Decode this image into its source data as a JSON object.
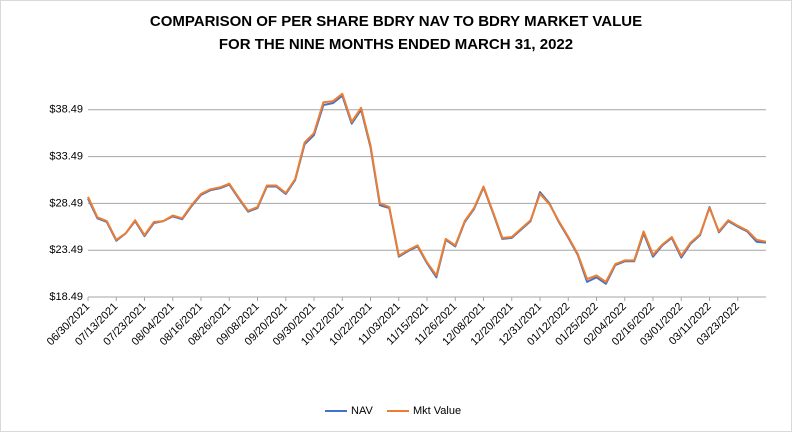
{
  "chart_data": {
    "type": "line",
    "title": [
      "COMPARISON OF PER SHARE BDRY NAV TO BDRY MARKET VALUE",
      "FOR THE NINE MONTHS ENDED MARCH 31, 2022"
    ],
    "categories": [
      "06/30/2021",
      null,
      null,
      "07/13/2021",
      null,
      null,
      "07/23/2021",
      null,
      null,
      "08/04/2021",
      null,
      null,
      "08/16/2021",
      null,
      null,
      "08/26/2021",
      null,
      null,
      "09/08/2021",
      null,
      null,
      "09/20/2021",
      null,
      null,
      "09/30/2021",
      null,
      null,
      "10/12/2021",
      null,
      null,
      "10/22/2021",
      null,
      null,
      "11/03/2021",
      null,
      null,
      "11/15/2021",
      null,
      null,
      "11/26/2021",
      null,
      null,
      "12/08/2021",
      null,
      null,
      "12/20/2021",
      null,
      null,
      "12/31/2021",
      null,
      null,
      "01/12/2022",
      null,
      null,
      "01/25/2022",
      null,
      null,
      "02/04/2022",
      null,
      null,
      "02/16/2022",
      null,
      null,
      "03/01/2022",
      null,
      null,
      "03/11/2022",
      null,
      null,
      "03/23/2022",
      null,
      null,
      null
    ],
    "series": [
      {
        "name": "NAV",
        "color": "#4472c4",
        "values": [
          29.0,
          26.9,
          26.5,
          24.5,
          25.3,
          26.6,
          25.0,
          26.4,
          26.6,
          27.1,
          26.8,
          28.2,
          29.4,
          29.9,
          30.1,
          30.5,
          29.0,
          27.6,
          28.0,
          30.3,
          30.3,
          29.5,
          31.0,
          34.8,
          35.8,
          39.0,
          39.2,
          40.0,
          37.0,
          38.5,
          34.5,
          28.3,
          28.0,
          22.8,
          23.4,
          23.9,
          22.1,
          20.6,
          24.6,
          23.9,
          26.5,
          27.9,
          30.2,
          27.5,
          24.7,
          24.8,
          25.7,
          26.6,
          29.7,
          28.5,
          26.5,
          24.8,
          23.0,
          20.1,
          20.6,
          19.9,
          21.9,
          22.3,
          22.3,
          25.3,
          22.8,
          24.0,
          24.8,
          22.7,
          24.2,
          25.1,
          28.1,
          25.4,
          26.6,
          26.0,
          25.5,
          24.4,
          24.3
        ]
      },
      {
        "name": "Mkt Value",
        "color": "#ed7d31",
        "values": [
          29.2,
          27.0,
          26.6,
          24.6,
          25.3,
          26.7,
          25.1,
          26.5,
          26.6,
          27.2,
          26.9,
          28.3,
          29.5,
          30.0,
          30.2,
          30.6,
          29.1,
          27.7,
          28.1,
          30.4,
          30.4,
          29.6,
          31.1,
          35.0,
          36.0,
          39.3,
          39.4,
          40.2,
          37.2,
          38.7,
          34.7,
          28.5,
          28.1,
          22.9,
          23.5,
          24.0,
          22.2,
          20.8,
          24.7,
          24.0,
          26.6,
          28.0,
          30.3,
          27.6,
          24.8,
          24.9,
          25.8,
          26.7,
          29.5,
          28.4,
          26.6,
          24.9,
          23.1,
          20.4,
          20.8,
          20.1,
          22.0,
          22.4,
          22.4,
          25.5,
          23.0,
          24.1,
          24.9,
          22.9,
          24.3,
          25.2,
          28.0,
          25.5,
          26.7,
          26.1,
          25.6,
          24.6,
          24.4
        ]
      }
    ],
    "ylim": [
      18.49,
      43.49
    ],
    "yticks": [
      {
        "value": 18.49,
        "label": "$18.49"
      },
      {
        "value": 23.49,
        "label": "$23.49"
      },
      {
        "value": 28.49,
        "label": "$28.49"
      },
      {
        "value": 33.49,
        "label": "$33.49"
      },
      {
        "value": 38.49,
        "label": "$38.49"
      }
    ],
    "grid": true,
    "legend": "bottom"
  }
}
